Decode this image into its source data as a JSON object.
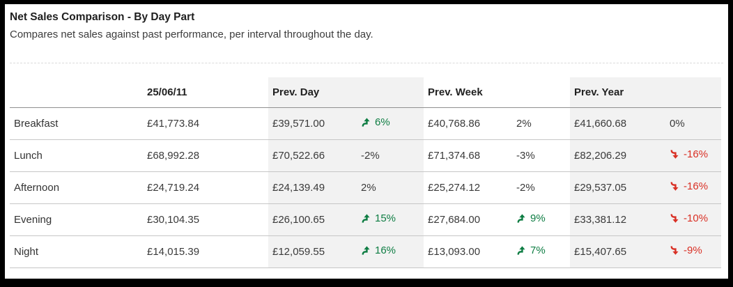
{
  "widget": {
    "title": "Net Sales Comparison - By Day Part",
    "subtitle": "Compares net sales against past performance, per interval throughout the day."
  },
  "table": {
    "columns": {
      "row_header": "",
      "date": "25/06/11",
      "prev_day": "Prev. Day",
      "prev_week": "Prev. Week",
      "prev_year": "Prev. Year"
    },
    "rows": [
      {
        "label": "Breakfast",
        "current": "£41,773.84",
        "prev_day": {
          "value": "£39,571.00",
          "delta": "6%",
          "trend": "up"
        },
        "prev_week": {
          "value": "£40,768.86",
          "delta": "2%",
          "trend": "flat"
        },
        "prev_year": {
          "value": "£41,660.68",
          "delta": "0%",
          "trend": "flat"
        }
      },
      {
        "label": "Lunch",
        "current": "£68,992.28",
        "prev_day": {
          "value": "£70,522.66",
          "delta": "-2%",
          "trend": "flat"
        },
        "prev_week": {
          "value": "£71,374.68",
          "delta": "-3%",
          "trend": "flat"
        },
        "prev_year": {
          "value": "£82,206.29",
          "delta": "-16%",
          "trend": "down"
        }
      },
      {
        "label": "Afternoon",
        "current": "£24,719.24",
        "prev_day": {
          "value": "£24,139.49",
          "delta": "2%",
          "trend": "flat"
        },
        "prev_week": {
          "value": "£25,274.12",
          "delta": "-2%",
          "trend": "flat"
        },
        "prev_year": {
          "value": "£29,537.05",
          "delta": "-16%",
          "trend": "down"
        }
      },
      {
        "label": "Evening",
        "current": "£30,104.35",
        "prev_day": {
          "value": "£26,100.65",
          "delta": "15%",
          "trend": "up"
        },
        "prev_week": {
          "value": "£27,684.00",
          "delta": "9%",
          "trend": "up"
        },
        "prev_year": {
          "value": "£33,381.12",
          "delta": "-10%",
          "trend": "down"
        }
      },
      {
        "label": "Night",
        "current": "£14,015.39",
        "prev_day": {
          "value": "£12,059.55",
          "delta": "16%",
          "trend": "up"
        },
        "prev_week": {
          "value": "£13,093.00",
          "delta": "7%",
          "trend": "up"
        },
        "prev_year": {
          "value": "£15,407.65",
          "delta": "-9%",
          "trend": "down"
        }
      }
    ]
  },
  "colors": {
    "positive": "#0e7d43",
    "negative": "#d93025",
    "column_shade": "#f2f2f2"
  }
}
